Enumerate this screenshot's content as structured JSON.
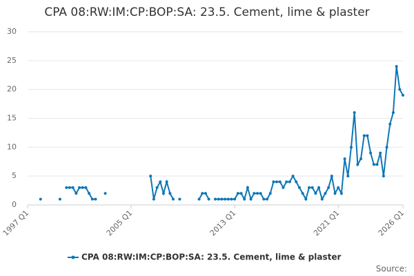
{
  "chart_data": {
    "type": "line",
    "title": "CPA 08:RW:IM:CP:BOP:SA: 23.5. Cement, lime & plaster",
    "source": "Source:",
    "categories": [
      "1997 Q1",
      null,
      null,
      null,
      null,
      null,
      null,
      null,
      null,
      null,
      null,
      null,
      null,
      null,
      null,
      null,
      null,
      null,
      null,
      null,
      null,
      null,
      null,
      null,
      null,
      null,
      null,
      null,
      null,
      null,
      null,
      null,
      "2005 Q1",
      null,
      null,
      null,
      null,
      null,
      null,
      null,
      null,
      null,
      null,
      null,
      null,
      null,
      null,
      null,
      null,
      null,
      null,
      null,
      null,
      null,
      null,
      null,
      null,
      null,
      null,
      null,
      null,
      null,
      null,
      null,
      "2013 Q1",
      null,
      null,
      null,
      null,
      null,
      null,
      null,
      null,
      null,
      null,
      null,
      null,
      null,
      null,
      null,
      null,
      null,
      null,
      null,
      null,
      null,
      null,
      null,
      null,
      null,
      null,
      null,
      null,
      null,
      null,
      null,
      "2021 Q1",
      null,
      null,
      null,
      null,
      null,
      null,
      null,
      null,
      null,
      null,
      null,
      null,
      null,
      null,
      null,
      null,
      null,
      null,
      null,
      "2026 Q1"
    ],
    "series": [
      {
        "name": "CPA 08:RW:IM:CP:BOP:SA: 23.5. Cement, lime & plaster",
        "color": "#0b76b7",
        "values": [
          null,
          null,
          null,
          null,
          1,
          null,
          null,
          null,
          null,
          null,
          1,
          null,
          3,
          3,
          3,
          2,
          3,
          3,
          3,
          2,
          1,
          1,
          null,
          null,
          2,
          null,
          null,
          null,
          null,
          null,
          null,
          null,
          null,
          null,
          null,
          null,
          null,
          null,
          5,
          1,
          3,
          4,
          2,
          4,
          2,
          1,
          null,
          1,
          null,
          null,
          null,
          null,
          null,
          1,
          2,
          2,
          1,
          null,
          1,
          1,
          1,
          1,
          1,
          1,
          1,
          2,
          2,
          1,
          3,
          1,
          2,
          2,
          2,
          1,
          1,
          2,
          4,
          4,
          4,
          3,
          4,
          4,
          5,
          4,
          3,
          2,
          1,
          3,
          3,
          2,
          3,
          1,
          2,
          3,
          5,
          2,
          3,
          2,
          8,
          5,
          10,
          16,
          7,
          8,
          12,
          12,
          9,
          7,
          7,
          9,
          5,
          10,
          14,
          16,
          24,
          20,
          19
        ]
      }
    ],
    "ylim": [
      0,
      30
    ],
    "yticks": [
      0,
      5,
      10,
      15,
      20,
      25,
      30
    ],
    "grid": true,
    "legend": "bottom"
  }
}
